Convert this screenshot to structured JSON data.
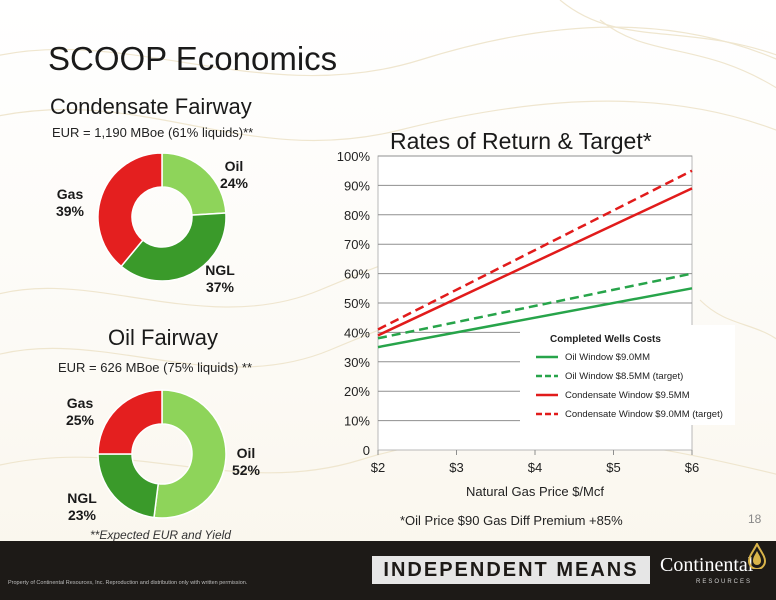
{
  "slide": {
    "title": "SCOOP Economics",
    "page_number": "18",
    "footnote": "*Oil Price $90   Gas Diff Premium +85%",
    "expected_note": "**Expected EUR and Yield"
  },
  "condensate": {
    "title": "Condensate Fairway",
    "eur": "EUR = 1,190 MBoe (61% liquids)**",
    "labels": {
      "oil": "Oil\n24%",
      "ngl": "NGL\n37%",
      "gas": "Gas\n39%"
    }
  },
  "oil_fairway": {
    "title": "Oil Fairway",
    "eur": "EUR = 626 MBoe (75% liquids) **",
    "labels": {
      "oil": "Oil\n52%",
      "ngl": "NGL\n23%",
      "gas": "Gas\n25%"
    }
  },
  "colors": {
    "oil": "#8ed45a",
    "ngl": "#3a9a2a",
    "gas": "#e41f1f",
    "green_line": "#27a44a",
    "red_line": "#e11b1b",
    "footer": "#1d1a17"
  },
  "footer": {
    "tagline": "INDEPENDENT MEANS",
    "brand": "Continental",
    "brand_sub": "RESOURCES",
    "legal": "Property of Continental Resources, Inc. Reproduction and distribution only with written permission."
  },
  "chart_data": [
    {
      "type": "pie",
      "title": "Condensate Fairway",
      "categories": [
        "Oil",
        "NGL",
        "Gas"
      ],
      "values": [
        24,
        37,
        39
      ],
      "colors": [
        "#8ed45a",
        "#3a9a2a",
        "#e41f1f"
      ]
    },
    {
      "type": "pie",
      "title": "Oil Fairway",
      "categories": [
        "Oil",
        "NGL",
        "Gas"
      ],
      "values": [
        52,
        23,
        25
      ],
      "colors": [
        "#8ed45a",
        "#3a9a2a",
        "#e41f1f"
      ]
    },
    {
      "type": "line",
      "title": "Rates of Return & Target*",
      "xlabel": "Natural Gas Price $/Mcf",
      "ylabel": "",
      "x": [
        2,
        6
      ],
      "x_ticks": [
        2,
        3,
        4,
        5,
        6
      ],
      "x_tick_labels": [
        "$2",
        "$3",
        "$4",
        "$5",
        "$6"
      ],
      "y_ticks": [
        0,
        10,
        20,
        30,
        40,
        50,
        60,
        70,
        80,
        90,
        100
      ],
      "y_tick_labels": [
        "0",
        "10%",
        "20%",
        "30%",
        "40%",
        "50%",
        "60%",
        "70%",
        "80%",
        "90%",
        "100%"
      ],
      "xlim": [
        2,
        6
      ],
      "ylim": [
        0,
        100
      ],
      "grid": true,
      "legend_position": "lower-right",
      "legend_title": "Completed Wells Costs",
      "series": [
        {
          "name": "Oil Window $9.0MM",
          "values": [
            35,
            55
          ],
          "color": "#27a44a",
          "dashed": false
        },
        {
          "name": "Oil Window $8.5MM (target)",
          "values": [
            38,
            60
          ],
          "color": "#27a44a",
          "dashed": true
        },
        {
          "name": "Condensate Window $9.5MM",
          "values": [
            39,
            89
          ],
          "color": "#e11b1b",
          "dashed": false
        },
        {
          "name": "Condensate Window  $9.0MM (target)",
          "values": [
            41,
            95
          ],
          "color": "#e11b1b",
          "dashed": true
        }
      ]
    }
  ]
}
